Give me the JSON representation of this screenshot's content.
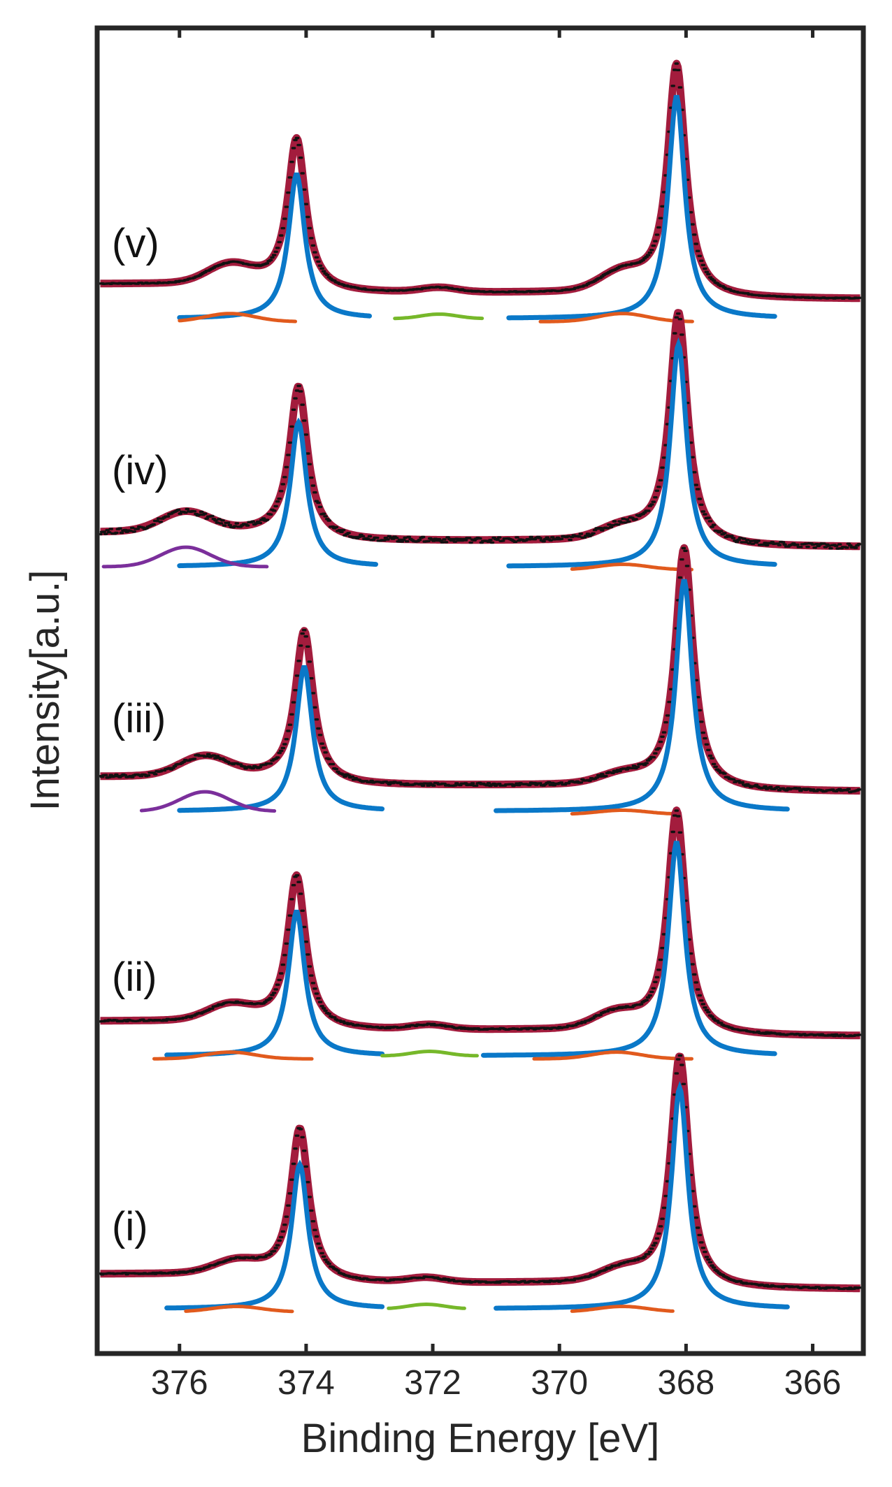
{
  "chart_data": {
    "type": "line",
    "title": "",
    "xlabel": "Binding Energy [eV]",
    "ylabel": "Intensity[a.u.]",
    "xlim": [
      377.3,
      365.2
    ],
    "x_reversed": true,
    "xticks": [
      376,
      374,
      372,
      370,
      368,
      366
    ],
    "yticks_labeled": false,
    "colors": {
      "data": "#111111",
      "fit": "#a31c3d",
      "main": "#0a78c8",
      "sat1": "#e15a1d",
      "sat2": "#76b82a",
      "sat3": "#7b2f9b"
    },
    "spectra": [
      {
        "label": "(v)",
        "shift": 0.0,
        "noise": 0.02,
        "p1_h": 1.0,
        "p2_h": 1.54,
        "base_top": 0.0,
        "base_bot": 0.0,
        "main_ranges": [
          [
            376.0,
            373.0
          ],
          [
            370.8,
            366.6
          ]
        ],
        "orange": [
          [
            376.0,
            374.15,
            375.2,
            0.12
          ],
          [
            370.3,
            367.9,
            369.0,
            0.12
          ]
        ],
        "green": [
          372.6,
          371.2
        ],
        "purple": null
      },
      {
        "label": "(iv)",
        "shift": -0.03,
        "noise": 0.1,
        "p1_h": 1.0,
        "p2_h": 1.54,
        "base_top": 0.0,
        "base_bot": 0.0,
        "main_ranges": [
          [
            376.0,
            372.9
          ],
          [
            370.8,
            366.6
          ]
        ],
        "orange": [
          [
            369.8,
            367.9,
            369.0,
            0.08
          ]
        ],
        "green": null,
        "purple": [
          377.2,
          374.6,
          375.9,
          0.13
        ]
      },
      {
        "label": "(iii)",
        "shift": -0.12,
        "noise": 0.06,
        "p1_h": 1.0,
        "p2_h": 1.6,
        "base_top": 0.0,
        "base_bot": 0.0,
        "main_ranges": [
          [
            376.0,
            372.8
          ],
          [
            371.0,
            366.4
          ]
        ],
        "orange": [
          [
            369.8,
            368.1,
            369.0,
            0.06
          ]
        ],
        "green": null,
        "purple": [
          376.6,
          374.5,
          375.6,
          0.13
        ]
      },
      {
        "label": "(ii)",
        "shift": 0.0,
        "noise": 0.03,
        "p1_h": 1.0,
        "p2_h": 1.48,
        "base_top": 0.0,
        "base_bot": 0.0,
        "main_ranges": [
          [
            376.2,
            372.8
          ],
          [
            371.2,
            366.6
          ]
        ],
        "orange": [
          [
            376.4,
            373.9,
            375.2,
            0.1
          ],
          [
            370.4,
            367.9,
            369.1,
            0.1
          ]
        ],
        "green": [
          372.8,
          371.3
        ],
        "purple": null
      },
      {
        "label": "(i)",
        "shift": -0.05,
        "noise": 0.03,
        "p1_h": 1.0,
        "p2_h": 1.53,
        "base_top": 0.0,
        "base_bot": 0.0,
        "main_ranges": [
          [
            376.2,
            372.8
          ],
          [
            371.0,
            366.4
          ]
        ],
        "orange": [
          [
            375.9,
            374.2,
            375.1,
            0.08
          ],
          [
            369.8,
            368.2,
            369.0,
            0.08
          ]
        ],
        "green": [
          372.7,
          371.5
        ],
        "purple": null
      }
    ]
  }
}
